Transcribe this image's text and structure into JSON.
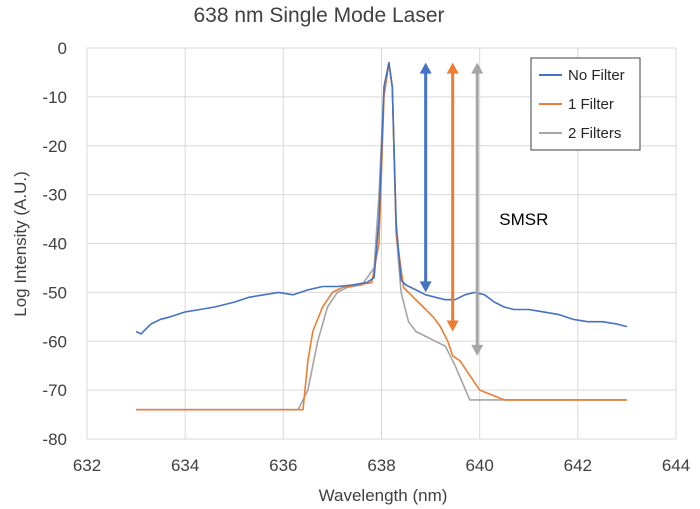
{
  "chart_data": {
    "type": "line",
    "title": "638 nm Single Mode Laser",
    "xlabel": "Wavelength (nm)",
    "ylabel": "Log Intensity (A.U.)",
    "xlim": [
      632,
      644
    ],
    "ylim": [
      -80,
      0
    ],
    "xticks": [
      632,
      634,
      636,
      638,
      640,
      642,
      644
    ],
    "yticks": [
      0,
      -10,
      -20,
      -30,
      -40,
      -50,
      -60,
      -70,
      -80
    ],
    "x_tick_labels": [
      "632",
      "634",
      "636",
      "638",
      "640",
      "642",
      "644"
    ],
    "y_tick_labels": [
      "0",
      "-10",
      "-20",
      "-30",
      "-40",
      "-50",
      "-60",
      "-70",
      "-80"
    ],
    "grid": true,
    "legend_position": "top-right",
    "series": [
      {
        "name": "No Filter",
        "color": "#4472C4",
        "x": [
          633.0,
          633.1,
          633.2,
          633.3,
          633.5,
          633.7,
          634.0,
          634.3,
          634.6,
          635.0,
          635.3,
          635.6,
          635.9,
          636.2,
          636.5,
          636.8,
          637.1,
          637.4,
          637.7,
          637.85,
          637.95,
          638.05,
          638.15,
          638.22,
          638.3,
          638.4,
          638.5,
          638.7,
          638.9,
          639.1,
          639.3,
          639.5,
          639.7,
          639.9,
          640.1,
          640.3,
          640.5,
          640.7,
          641.0,
          641.3,
          641.6,
          641.9,
          642.2,
          642.5,
          642.8,
          643.0
        ],
        "y": [
          -58,
          -58.5,
          -57.5,
          -56.5,
          -55.5,
          -55,
          -54,
          -53.5,
          -53,
          -52,
          -51,
          -50.5,
          -50,
          -50.5,
          -49.5,
          -48.8,
          -48.8,
          -48.5,
          -48,
          -47,
          -35,
          -8,
          -3,
          -8,
          -36,
          -47.5,
          -48.5,
          -49.5,
          -50.5,
          -51,
          -51.5,
          -51.5,
          -50.5,
          -50,
          -50.5,
          -52,
          -53,
          -53.5,
          -53.5,
          -54,
          -54.5,
          -55.5,
          -56,
          -56,
          -56.5,
          -57
        ]
      },
      {
        "name": "1 Filter",
        "color": "#ED7D31",
        "x": [
          633.0,
          633.5,
          634.0,
          634.5,
          635.0,
          635.5,
          636.0,
          636.4,
          636.5,
          636.6,
          636.8,
          637.0,
          637.2,
          637.5,
          637.8,
          637.95,
          638.05,
          638.15,
          638.22,
          638.3,
          638.45,
          638.65,
          638.85,
          639.05,
          639.2,
          639.35,
          639.45,
          639.6,
          640.0,
          640.5,
          641.0,
          641.5,
          642.0,
          642.5,
          643.0
        ],
        "y": [
          -74,
          -74,
          -74,
          -74,
          -74,
          -74,
          -74,
          -74,
          -64,
          -58,
          -53,
          -50,
          -49,
          -48.5,
          -48,
          -40,
          -10,
          -3,
          -8,
          -38,
          -49,
          -51,
          -53,
          -55,
          -57,
          -60,
          -63,
          -64,
          -70,
          -72,
          -72,
          -72,
          -72,
          -72,
          -72
        ]
      },
      {
        "name": "2 Filters",
        "color": "#A5A5A5",
        "x": [
          633.0,
          633.5,
          634.0,
          634.5,
          635.0,
          635.5,
          636.0,
          636.3,
          636.5,
          636.7,
          636.9,
          637.1,
          637.3,
          637.6,
          637.85,
          637.95,
          638.05,
          638.15,
          638.22,
          638.3,
          638.4,
          638.55,
          638.7,
          638.9,
          639.1,
          639.3,
          639.5,
          639.8,
          640.2,
          640.6,
          641.0,
          641.5,
          642.0,
          642.5,
          643.0
        ],
        "y": [
          -74,
          -74,
          -74,
          -74,
          -74,
          -74,
          -74,
          -74,
          -70,
          -60,
          -53,
          -50,
          -49,
          -48.5,
          -45,
          -30,
          -8,
          -3,
          -8,
          -38,
          -50,
          -56,
          -58,
          -59,
          -60,
          -61,
          -65,
          -72,
          -72,
          -72,
          -72,
          -72,
          -72,
          -72,
          -72
        ]
      }
    ],
    "annotations": [
      {
        "text": "SMSR",
        "x": 640.4,
        "y": -35
      }
    ],
    "arrows": [
      {
        "series": "No Filter",
        "color": "#4472C4",
        "x": 638.9,
        "y_top": -3,
        "y_bottom": -50
      },
      {
        "series": "1 Filter",
        "color": "#ED7D31",
        "x": 639.45,
        "y_top": -3,
        "y_bottom": -58
      },
      {
        "series": "2 Filters",
        "color": "#A5A5A5",
        "x": 639.95,
        "y_top": -3,
        "y_bottom": -63
      }
    ]
  }
}
